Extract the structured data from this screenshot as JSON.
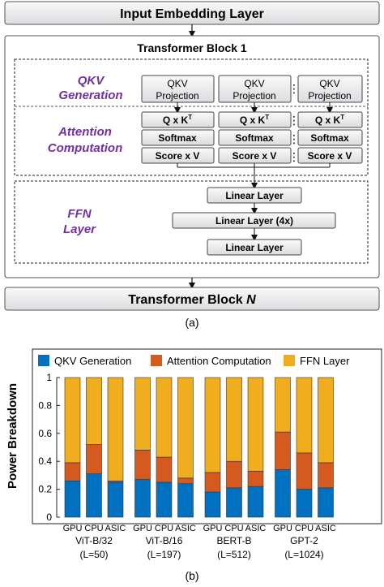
{
  "diagram": {
    "input_layer": "Input Embedding Layer",
    "block_title": "Transformer Block 1",
    "qkv_section": [
      "QKV",
      "Generation"
    ],
    "attn_section": [
      "Attention",
      "Computation"
    ],
    "ffn_section": [
      "FFN",
      "Layer"
    ],
    "qkv_box": [
      "QKV",
      "Projection"
    ],
    "qk_box": "Q x K",
    "qk_sup": "T",
    "softmax_box": "Softmax",
    "score_box": "Score x V",
    "linear_box": "Linear Layer",
    "linear4x_box": "Linear Layer (4x)",
    "final_block_prefix": "Transformer Block ",
    "final_block_n": "N",
    "caption": "(a)",
    "dots": "⋮",
    "section_color": "#7030a0"
  },
  "chart_data": {
    "type": "bar",
    "stacked": true,
    "ylabel": "Power Breakdown",
    "ylim": [
      0,
      1
    ],
    "yticks": [
      "0",
      "0.2",
      "0.4",
      "0.6",
      "0.8",
      "1"
    ],
    "legend_position": "top",
    "series": [
      {
        "name": "QKV Generation",
        "color": "#0070c0",
        "values": [
          0.26,
          0.31,
          0.25,
          0.27,
          0.25,
          0.24,
          0.18,
          0.21,
          0.22,
          0.34,
          0.2,
          0.21
        ]
      },
      {
        "name": "Attention Computation",
        "color": "#d55a1f",
        "values": [
          0.13,
          0.21,
          0.01,
          0.21,
          0.18,
          0.04,
          0.14,
          0.19,
          0.11,
          0.27,
          0.26,
          0.18
        ]
      },
      {
        "name": "FFN Layer",
        "color": "#f0ad1e",
        "values": [
          0.61,
          0.48,
          0.74,
          0.52,
          0.57,
          0.72,
          0.68,
          0.6,
          0.67,
          0.39,
          0.54,
          0.61
        ]
      }
    ],
    "groups": [
      {
        "name": "ViT-B/32",
        "sub": "(L=50)",
        "bars": [
          "GPU",
          "CPU",
          "ASIC"
        ]
      },
      {
        "name": "ViT-B/16",
        "sub": "(L=197)",
        "bars": [
          "GPU",
          "CPU",
          "ASIC"
        ]
      },
      {
        "name": "BERT-B",
        "sub": "(L=512)",
        "bars": [
          "GPU",
          "CPU",
          "ASIC"
        ]
      },
      {
        "name": "GPT-2",
        "sub": "(L=1024)",
        "bars": [
          "GPU",
          "CPU",
          "ASIC"
        ]
      }
    ],
    "caption": "(b)"
  }
}
